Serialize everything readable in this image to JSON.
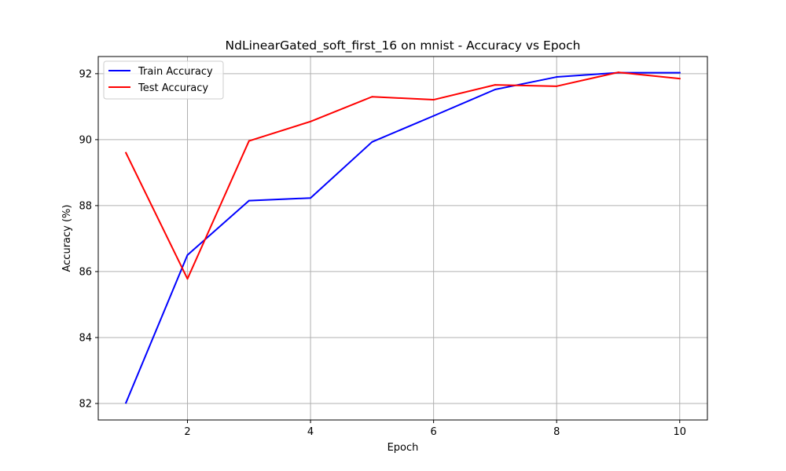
{
  "chart_data": {
    "type": "line",
    "title": "NdLinearGated_soft_first_16 on mnist - Accuracy vs Epoch",
    "xlabel": "Epoch",
    "ylabel": "Accuracy (%)",
    "x": [
      1,
      2,
      3,
      4,
      5,
      6,
      7,
      8,
      9,
      10
    ],
    "xlim": [
      0.55,
      10.45
    ],
    "ylim": [
      81.5,
      92.52
    ],
    "xticks": [
      2,
      4,
      6,
      8,
      10
    ],
    "yticks": [
      82,
      84,
      86,
      88,
      90,
      92
    ],
    "grid": true,
    "legend_position": "upper left",
    "series": [
      {
        "name": "Train Accuracy",
        "color": "#0000ff",
        "values": [
          82.02,
          86.5,
          88.15,
          88.23,
          89.93,
          90.72,
          91.52,
          91.9,
          92.03,
          92.03
        ]
      },
      {
        "name": "Test Accuracy",
        "color": "#ff0000",
        "values": [
          89.6,
          85.78,
          89.96,
          90.55,
          91.3,
          91.21,
          91.66,
          91.62,
          92.04,
          91.85
        ]
      }
    ]
  }
}
